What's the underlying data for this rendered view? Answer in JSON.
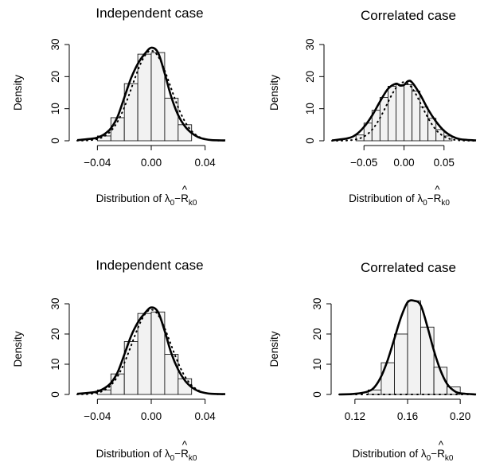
{
  "chart_data": [
    {
      "type": "bar",
      "title": "Independent case",
      "ylabel": "Density",
      "xlabel": {
        "prefix": "Distribution of ",
        "lambda": "λ",
        "sub0": "0",
        "minus": "−",
        "hatR": "R",
        "hat": "^",
        "subk0": "k0"
      },
      "xlim": [
        -0.055,
        0.055
      ],
      "ylim": [
        0,
        30
      ],
      "xticks": [
        -0.04,
        0.0,
        0.04
      ],
      "xtick_labels": [
        "−0.04",
        "0.00",
        "0.04"
      ],
      "yticks": [
        0,
        10,
        20,
        30
      ],
      "ytick_labels": [
        "0",
        "10",
        "20",
        "30"
      ],
      "bins": [
        {
          "x0": -0.04,
          "x1": -0.03,
          "value": 1.5
        },
        {
          "x0": -0.03,
          "x1": -0.02,
          "value": 7.2
        },
        {
          "x0": -0.02,
          "x1": -0.01,
          "value": 17.8
        },
        {
          "x0": -0.01,
          "x1": 0.0,
          "value": 27.0
        },
        {
          "x0": 0.0,
          "x1": 0.01,
          "value": 27.5
        },
        {
          "x0": 0.01,
          "x1": 0.02,
          "value": 13.3
        },
        {
          "x0": 0.02,
          "x1": 0.03,
          "value": 5.0
        }
      ],
      "kde": {
        "x": [
          -0.055,
          -0.045,
          -0.04,
          -0.035,
          -0.03,
          -0.025,
          -0.02,
          -0.015,
          -0.01,
          -0.005,
          0.0,
          0.005,
          0.01,
          0.015,
          0.02,
          0.025,
          0.03,
          0.035,
          0.04,
          0.045,
          0.055
        ],
        "y": [
          0.2,
          0.6,
          1.0,
          2.0,
          3.9,
          7.5,
          13.5,
          19.5,
          24.0,
          27.0,
          29.0,
          27.5,
          21.0,
          13.5,
          8.0,
          4.5,
          2.4,
          1.1,
          0.5,
          0.2,
          0.1
        ]
      },
      "normal": {
        "mean": 0.0,
        "sd": 0.0142
      }
    },
    {
      "type": "bar",
      "title": "Correlated case",
      "ylabel": "Density",
      "xlabel": {
        "prefix": "Distribution of ",
        "lambda": "λ",
        "sub0": "0",
        "minus": "−",
        "hatR": "R",
        "hat": "^",
        "subk0": "k0"
      },
      "xlim": [
        -0.09,
        0.09
      ],
      "ylim": [
        0,
        30
      ],
      "xticks": [
        -0.05,
        0.0,
        0.05
      ],
      "xtick_labels": [
        "−0.05",
        "0.00",
        "0.05"
      ],
      "yticks": [
        0,
        10,
        20,
        30
      ],
      "ytick_labels": [
        "0",
        "10",
        "20",
        "30"
      ],
      "bins": [
        {
          "x0": -0.06,
          "x1": -0.05,
          "value": 1.8
        },
        {
          "x0": -0.05,
          "x1": -0.04,
          "value": 5.5
        },
        {
          "x0": -0.04,
          "x1": -0.03,
          "value": 9.5
        },
        {
          "x0": -0.03,
          "x1": -0.02,
          "value": 13.5
        },
        {
          "x0": -0.02,
          "x1": -0.01,
          "value": 17.0
        },
        {
          "x0": -0.01,
          "x1": 0.0,
          "value": 17.5
        },
        {
          "x0": 0.0,
          "x1": 0.01,
          "value": 17.5
        },
        {
          "x0": 0.01,
          "x1": 0.02,
          "value": 15.5
        },
        {
          "x0": 0.02,
          "x1": 0.03,
          "value": 10.5
        },
        {
          "x0": 0.03,
          "x1": 0.04,
          "value": 7.0
        },
        {
          "x0": 0.04,
          "x1": 0.05,
          "value": 3.5
        },
        {
          "x0": 0.05,
          "x1": 0.06,
          "value": 1.5
        }
      ],
      "kde": {
        "x": [
          -0.09,
          -0.07,
          -0.06,
          -0.05,
          -0.04,
          -0.03,
          -0.02,
          -0.01,
          -0.005,
          0.0,
          0.005,
          0.01,
          0.02,
          0.03,
          0.04,
          0.05,
          0.06,
          0.07,
          0.09
        ],
        "y": [
          0.1,
          0.8,
          1.9,
          4.3,
          7.8,
          12.2,
          16.2,
          17.8,
          17.2,
          17.4,
          18.6,
          18.2,
          14.5,
          9.8,
          6.0,
          3.1,
          1.4,
          0.5,
          0.1
        ]
      },
      "normal": {
        "mean": 0.0,
        "sd": 0.0218
      }
    },
    {
      "type": "bar",
      "title": "Independent case",
      "ylabel": "Density",
      "xlabel": {
        "prefix": "Distribution of ",
        "lambda": "λ",
        "sub0": "0",
        "minus": "−",
        "hatR": "R",
        "hat": "^",
        "subk0": "k0"
      },
      "xlim": [
        -0.055,
        0.055
      ],
      "ylim": [
        0,
        30
      ],
      "xticks": [
        -0.04,
        0.0,
        0.04
      ],
      "xtick_labels": [
        "−0.04",
        "0.00",
        "0.04"
      ],
      "yticks": [
        0,
        10,
        20,
        30
      ],
      "ytick_labels": [
        "0",
        "10",
        "20",
        "30"
      ],
      "bins": [
        {
          "x0": -0.04,
          "x1": -0.03,
          "value": 1.5
        },
        {
          "x0": -0.03,
          "x1": -0.02,
          "value": 6.8
        },
        {
          "x0": -0.02,
          "x1": -0.01,
          "value": 17.5
        },
        {
          "x0": -0.01,
          "x1": 0.0,
          "value": 26.8
        },
        {
          "x0": 0.0,
          "x1": 0.01,
          "value": 27.3
        },
        {
          "x0": 0.01,
          "x1": 0.02,
          "value": 13.3
        },
        {
          "x0": 0.02,
          "x1": 0.03,
          "value": 5.2
        }
      ],
      "kde": {
        "x": [
          -0.055,
          -0.045,
          -0.04,
          -0.035,
          -0.03,
          -0.025,
          -0.02,
          -0.015,
          -0.01,
          -0.005,
          0.0,
          0.005,
          0.01,
          0.015,
          0.02,
          0.025,
          0.03,
          0.035,
          0.04,
          0.045,
          0.055
        ],
        "y": [
          0.2,
          0.6,
          1.0,
          2.0,
          3.8,
          7.3,
          13.2,
          19.3,
          23.8,
          26.8,
          28.8,
          27.3,
          21.0,
          13.5,
          8.2,
          4.6,
          2.4,
          1.1,
          0.5,
          0.2,
          0.1
        ]
      },
      "normal": {
        "mean": 0.0,
        "sd": 0.0142
      }
    },
    {
      "type": "bar",
      "title": "Correlated case",
      "ylabel": "Density",
      "xlabel": {
        "prefix": "Distribution of ",
        "lambda": "λ",
        "sub0": "0",
        "minus": "−",
        "hatR": "R",
        "hat": "^",
        "subk0": "k0"
      },
      "xlim": [
        0.108,
        0.212
      ],
      "ylim": [
        0,
        30
      ],
      "xticks": [
        0.12,
        0.16,
        0.2
      ],
      "xtick_labels": [
        "0.12",
        "0.16",
        "0.20"
      ],
      "yticks": [
        0,
        10,
        20,
        30
      ],
      "ytick_labels": [
        "0",
        "10",
        "20",
        "30"
      ],
      "bins": [
        {
          "x0": 0.13,
          "x1": 0.14,
          "value": 1.5
        },
        {
          "x0": 0.14,
          "x1": 0.15,
          "value": 10.5
        },
        {
          "x0": 0.15,
          "x1": 0.16,
          "value": 20.0
        },
        {
          "x0": 0.16,
          "x1": 0.17,
          "value": 31.5
        },
        {
          "x0": 0.17,
          "x1": 0.18,
          "value": 22.3
        },
        {
          "x0": 0.18,
          "x1": 0.19,
          "value": 9.0
        },
        {
          "x0": 0.19,
          "x1": 0.2,
          "value": 2.5
        }
      ],
      "kde": {
        "x": [
          0.108,
          0.12,
          0.13,
          0.135,
          0.14,
          0.145,
          0.15,
          0.155,
          0.16,
          0.165,
          0.17,
          0.175,
          0.18,
          0.185,
          0.19,
          0.195,
          0.2,
          0.212
        ],
        "y": [
          0.0,
          0.2,
          1.0,
          2.5,
          6.0,
          11.5,
          18.5,
          25.5,
          30.5,
          32.5,
          29.5,
          22.5,
          14.5,
          8.0,
          3.5,
          1.3,
          0.4,
          0.0
        ]
      },
      "normal": {
        "mean": 0.0,
        "sd": 0.0
      },
      "normal_visible": false
    }
  ]
}
